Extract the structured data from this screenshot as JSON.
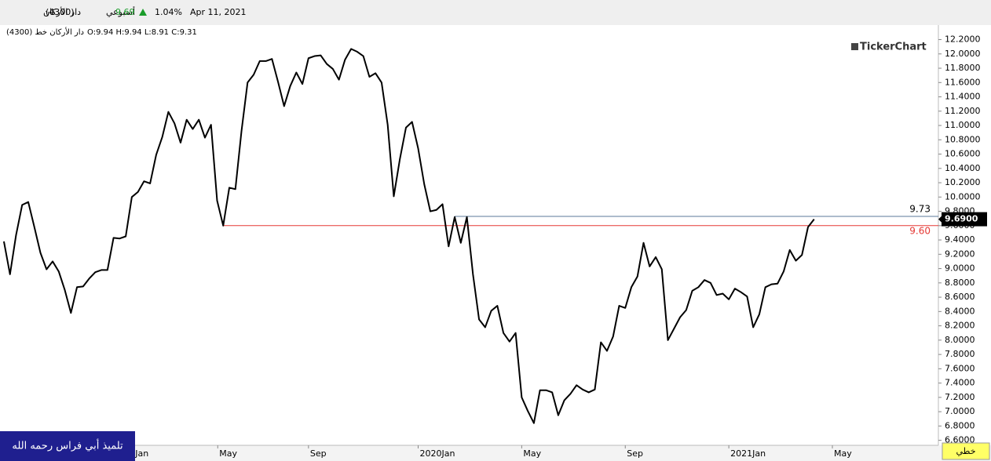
{
  "chart_data": {
    "type": "line",
    "header": {
      "name": "دار الأركان",
      "code": "(4300)",
      "interval": "أسبوعي",
      "price": "9.69",
      "change": "1.04%",
      "date": "Apr 11, 2021"
    },
    "legend_name": "(4300) دار الأركان خط",
    "ohlc": "O:9.94 H:9.94 L:8.91 C:9.31",
    "watermark": "TickerChart",
    "footer_left": "تلميذ أبي فراس رحمه الله",
    "footer_right": "خطي",
    "series": [
      {
        "color": "#000000",
        "x": [
          0,
          1,
          2,
          3,
          4,
          5,
          6,
          7,
          8,
          9,
          10,
          11,
          12,
          13,
          14,
          15,
          16,
          17,
          18,
          19,
          20,
          21,
          22,
          23,
          24,
          25,
          26,
          27,
          28,
          29,
          30,
          31,
          32,
          33,
          34,
          35,
          36,
          37,
          38,
          39,
          40,
          41,
          42,
          43,
          44,
          45,
          46,
          47,
          48,
          49,
          50,
          51,
          52,
          53,
          54,
          55,
          56,
          57,
          58,
          59,
          60,
          61,
          62,
          63,
          64,
          65,
          66,
          67,
          68,
          69,
          70,
          71,
          72,
          73,
          74,
          75,
          76,
          77,
          78,
          79,
          80,
          81,
          82,
          83,
          84,
          85,
          86,
          87,
          88,
          89,
          90,
          91,
          92,
          93,
          94,
          95,
          96,
          97,
          98,
          99,
          100,
          101,
          102,
          103,
          104,
          105,
          106,
          107,
          108,
          109,
          110,
          111,
          112,
          113,
          114,
          115,
          116,
          117,
          118,
          119,
          120,
          121,
          122,
          123,
          124,
          125,
          126,
          127,
          128,
          129,
          130,
          131,
          132,
          133
        ],
        "values": [
          9.38,
          8.92,
          9.47,
          9.89,
          9.93,
          9.58,
          9.22,
          8.99,
          9.1,
          8.96,
          8.7,
          8.38,
          8.74,
          8.75,
          8.86,
          8.95,
          8.98,
          8.98,
          9.43,
          9.42,
          9.45,
          10.0,
          10.07,
          10.22,
          10.19,
          10.59,
          10.84,
          11.19,
          11.03,
          10.76,
          11.08,
          10.95,
          11.08,
          10.83,
          11.01,
          9.95,
          9.6,
          10.13,
          10.11,
          10.92,
          11.6,
          11.71,
          11.9,
          11.9,
          11.93,
          11.61,
          11.27,
          11.55,
          11.74,
          11.58,
          11.94,
          11.97,
          11.98,
          11.86,
          11.79,
          11.64,
          11.92,
          12.07,
          12.03,
          11.97,
          11.68,
          11.73,
          11.6,
          11.01,
          10.01,
          10.53,
          10.97,
          11.05,
          10.68,
          10.18,
          9.8,
          9.82,
          9.9,
          9.31,
          9.72,
          9.36,
          9.72,
          8.92,
          8.29,
          8.18,
          8.41,
          8.48,
          8.1,
          7.98,
          8.1,
          7.2,
          7.01,
          6.84,
          7.3,
          7.3,
          7.27,
          6.95,
          7.16,
          7.25,
          7.37,
          7.31,
          7.27,
          7.31,
          7.97,
          7.85,
          8.05,
          8.48,
          8.45,
          8.74,
          8.89,
          9.36,
          9.03,
          9.16,
          8.99,
          8.0,
          8.16,
          8.32,
          8.42,
          8.69,
          8.74,
          8.84,
          8.8,
          8.63,
          8.65,
          8.57,
          8.72,
          8.67,
          8.61,
          8.18,
          8.36,
          8.74,
          8.78,
          8.79,
          8.96,
          9.26,
          9.11,
          9.19,
          9.58,
          9.69
        ]
      }
    ],
    "hlines": [
      {
        "value": 9.73,
        "label": "9.73",
        "x_start": 74,
        "color": "#5b7a99",
        "label_color": "#000000"
      },
      {
        "value": 9.6,
        "label": "9.60",
        "x_start": 36,
        "color": "#e53935",
        "label_color": "#e53935"
      }
    ],
    "last_label": {
      "value": 9.69,
      "label": "9.6900"
    },
    "xlim": [
      -0.64,
      153.4
    ],
    "xticks": [
      {
        "value": 21.3,
        "label": "Jan"
      },
      {
        "value": 35.1,
        "label": "May"
      },
      {
        "value": 50,
        "label": "Sep"
      },
      {
        "value": 68,
        "label": "2020Jan"
      },
      {
        "value": 85,
        "label": "May"
      },
      {
        "value": 102,
        "label": "Sep"
      },
      {
        "value": 119,
        "label": "2021Jan"
      },
      {
        "value": 136,
        "label": "May"
      }
    ],
    "ylim": [
      6.53,
      12.37
    ],
    "yticks": [
      {
        "value": 6.6,
        "label": "6.6000"
      },
      {
        "value": 6.8,
        "label": "6.8000"
      },
      {
        "value": 7.0,
        "label": "7.0000"
      },
      {
        "value": 7.2,
        "label": "7.2000"
      },
      {
        "value": 7.4,
        "label": "7.4000"
      },
      {
        "value": 7.6,
        "label": "7.6000"
      },
      {
        "value": 7.8,
        "label": "7.8000"
      },
      {
        "value": 8.0,
        "label": "8.0000"
      },
      {
        "value": 8.2,
        "label": "8.2000"
      },
      {
        "value": 8.4,
        "label": "8.4000"
      },
      {
        "value": 8.6,
        "label": "8.6000"
      },
      {
        "value": 8.8,
        "label": "8.8000"
      },
      {
        "value": 9.0,
        "label": "9.0000"
      },
      {
        "value": 9.2,
        "label": "9.2000"
      },
      {
        "value": 9.4,
        "label": "9.4000"
      },
      {
        "value": 9.6,
        "label": "9.6000"
      },
      {
        "value": 9.8,
        "label": "9.8000"
      },
      {
        "value": 10.0,
        "label": "10.0000"
      },
      {
        "value": 10.2,
        "label": "10.2000"
      },
      {
        "value": 10.4,
        "label": "10.4000"
      },
      {
        "value": 10.6,
        "label": "10.6000"
      },
      {
        "value": 10.8,
        "label": "10.8000"
      },
      {
        "value": 11.0,
        "label": "11.0000"
      },
      {
        "value": 11.2,
        "label": "11.2000"
      },
      {
        "value": 11.4,
        "label": "11.4000"
      },
      {
        "value": 11.6,
        "label": "11.6000"
      },
      {
        "value": 11.8,
        "label": "11.8000"
      },
      {
        "value": 12.0,
        "label": "12.0000"
      },
      {
        "value": 12.2,
        "label": "12.2000"
      }
    ]
  }
}
